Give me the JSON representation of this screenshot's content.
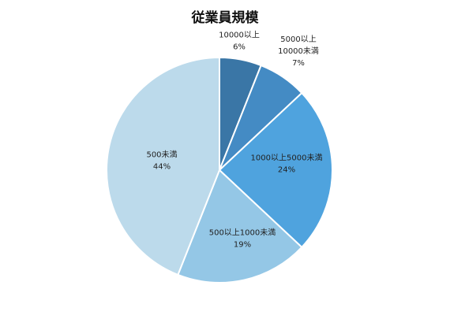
{
  "chart_data": {
    "type": "pie",
    "title": "従業員規模",
    "slices": [
      {
        "label_lines": [
          "10000以上"
        ],
        "percent_label": "6%",
        "value": 6,
        "color": "#3a76a6"
      },
      {
        "label_lines": [
          "5000以上",
          "10000未満"
        ],
        "percent_label": "7%",
        "value": 7,
        "color": "#448bc4"
      },
      {
        "label_lines": [
          "1000以上5000未満"
        ],
        "percent_label": "24%",
        "value": 24,
        "color": "#4fa3de"
      },
      {
        "label_lines": [
          "500以上1000未満"
        ],
        "percent_label": "19%",
        "value": 19,
        "color": "#94c7e6"
      },
      {
        "label_lines": [
          "500未満"
        ],
        "percent_label": "44%",
        "value": 44,
        "color": "#bcdaeb"
      }
    ],
    "legend": "none"
  }
}
